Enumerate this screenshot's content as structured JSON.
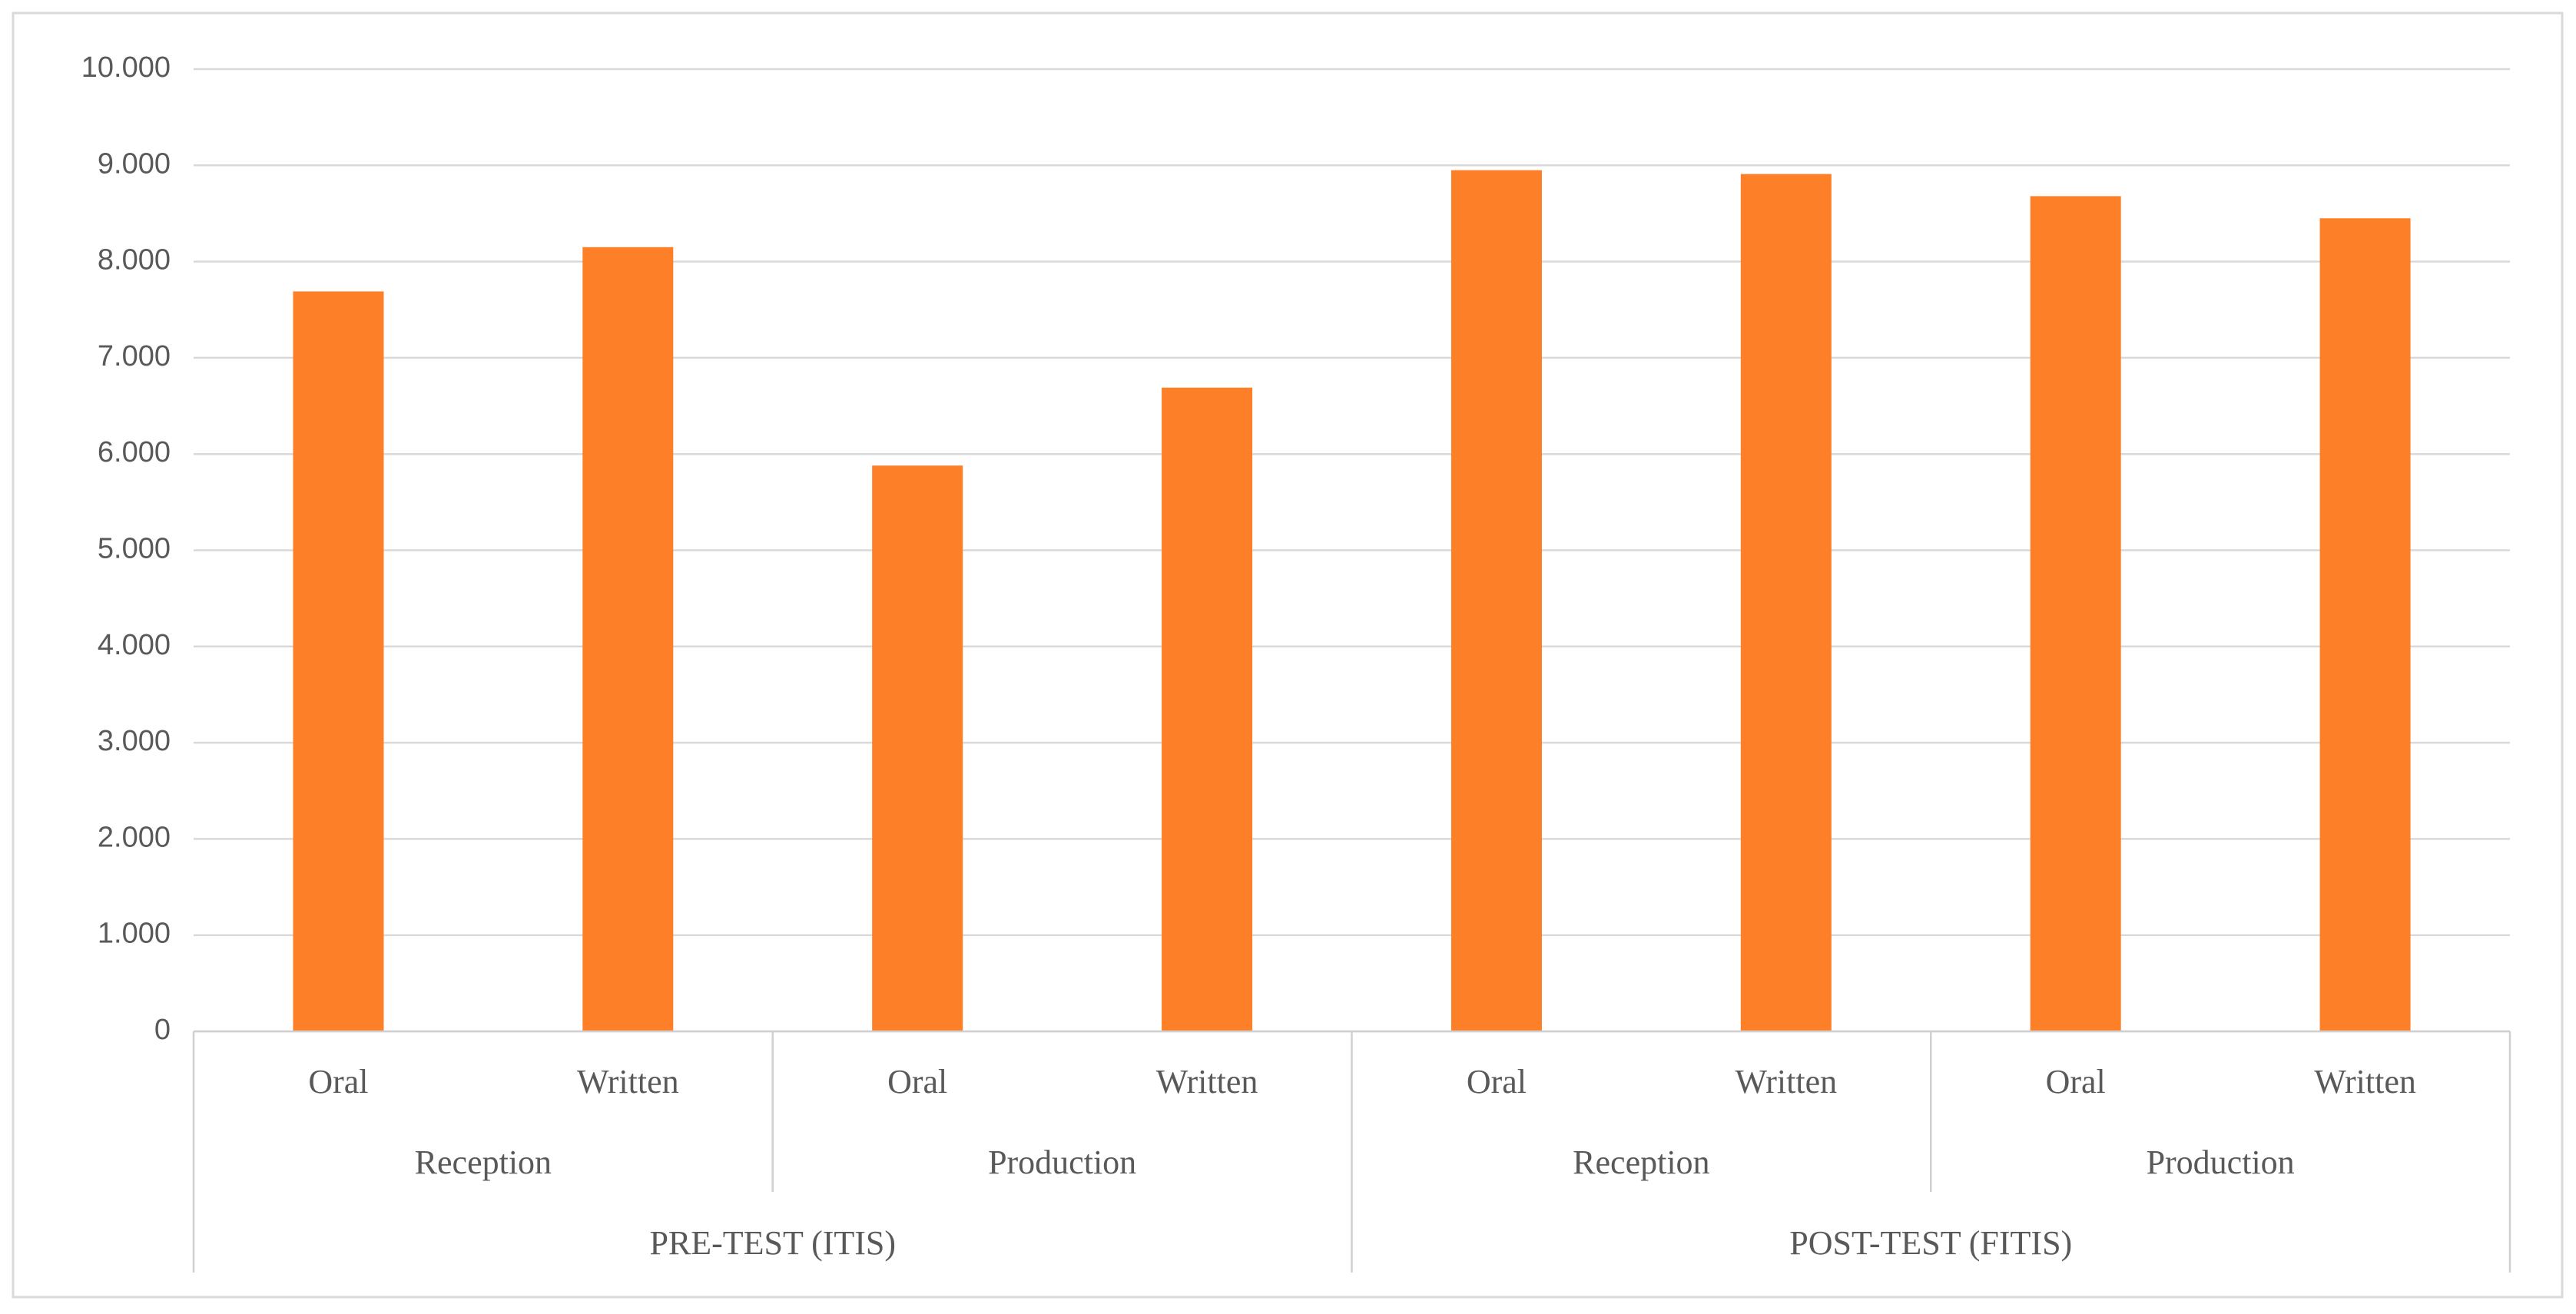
{
  "chart_data": {
    "type": "bar",
    "categories": [
      "Oral",
      "Written",
      "Oral",
      "Written",
      "Oral",
      "Written",
      "Oral",
      "Written"
    ],
    "category_level2": [
      "Reception",
      "Production",
      "Reception",
      "Production"
    ],
    "category_level3": [
      "PRE-TEST (ITIS)",
      "POST-TEST (FITIS)"
    ],
    "values": [
      7.69,
      8.15,
      5.88,
      6.69,
      8.95,
      8.91,
      8.68,
      8.45
    ],
    "color": "#fd7f27",
    "ylim": [
      0,
      10
    ],
    "yticks": [
      0,
      {
        "value": 1,
        "label": "1.000"
      },
      {
        "value": 2,
        "label": "2.000"
      },
      {
        "value": 3,
        "label": "3.000"
      },
      {
        "value": 4,
        "label": "4.000"
      },
      {
        "value": 5,
        "label": "5.000"
      },
      {
        "value": 6,
        "label": "6.000"
      },
      {
        "value": 7,
        "label": "7.000"
      },
      {
        "value": 8,
        "label": "8.000"
      },
      {
        "value": 9,
        "label": "9.000"
      },
      {
        "value": 10,
        "label": "10.000"
      }
    ],
    "grid": true
  }
}
